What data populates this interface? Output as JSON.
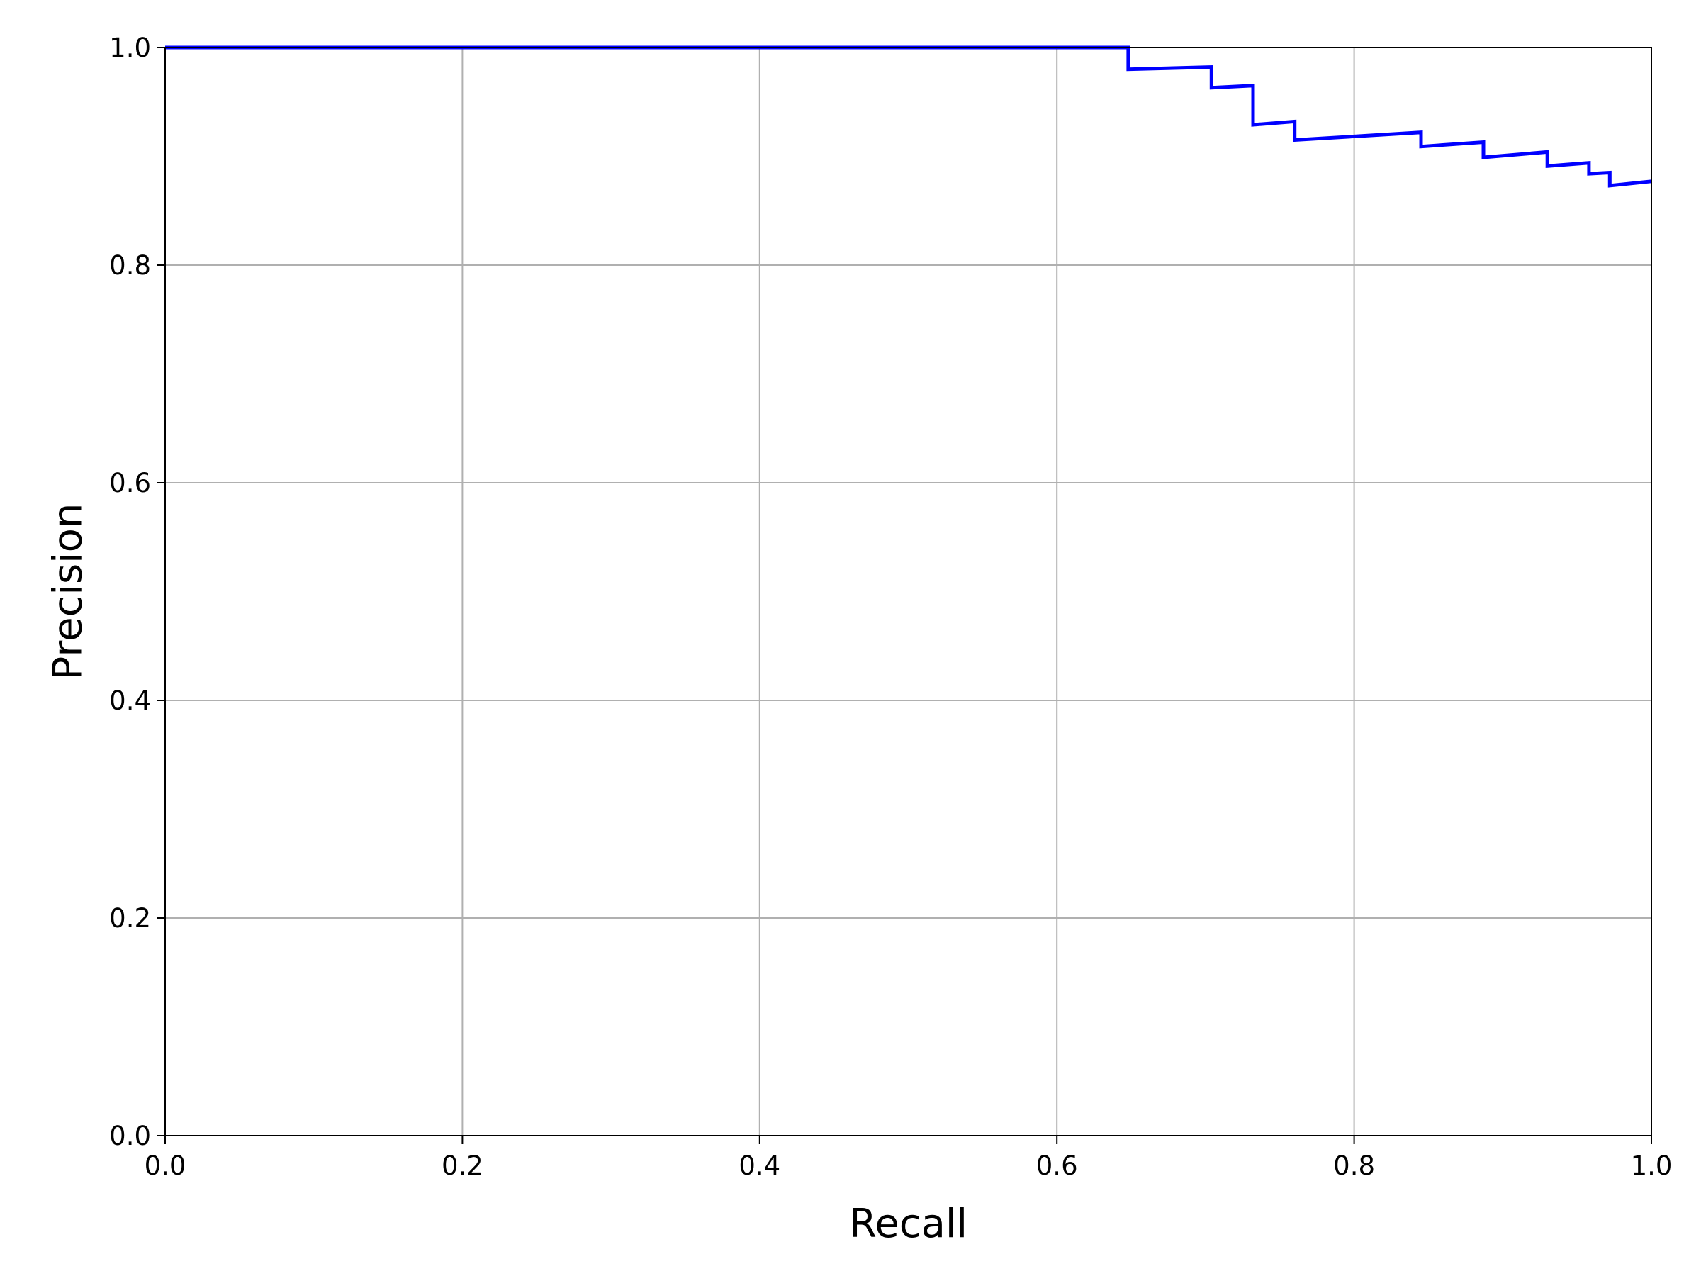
{
  "chart_data": {
    "type": "line",
    "title": "",
    "xlabel": "Recall",
    "ylabel": "Precision",
    "xlim": [
      0.0,
      1.0
    ],
    "ylim": [
      0.0,
      1.0
    ],
    "xticks": [
      0.0,
      0.2,
      0.4,
      0.6,
      0.8,
      1.0
    ],
    "yticks": [
      0.0,
      0.2,
      0.4,
      0.6,
      0.8,
      1.0
    ],
    "xtick_labels": [
      "0.0",
      "0.2",
      "0.4",
      "0.6",
      "0.8",
      "1.0"
    ],
    "ytick_labels": [
      "0.0",
      "0.2",
      "0.4",
      "0.6",
      "0.8",
      "1.0"
    ],
    "grid": true,
    "legend": "none",
    "series": [
      {
        "color": "#0000ff",
        "step": true,
        "x": [
          0.0,
          0.648,
          0.648,
          0.704,
          0.704,
          0.732,
          0.732,
          0.76,
          0.76,
          0.845,
          0.845,
          0.887,
          0.887,
          0.93,
          0.93,
          0.958,
          0.958,
          0.972,
          0.972,
          1.0
        ],
        "y": [
          1.0,
          1.0,
          0.98,
          0.982,
          0.963,
          0.965,
          0.929,
          0.932,
          0.915,
          0.922,
          0.909,
          0.913,
          0.899,
          0.904,
          0.891,
          0.894,
          0.884,
          0.885,
          0.873,
          0.877
        ]
      }
    ]
  }
}
